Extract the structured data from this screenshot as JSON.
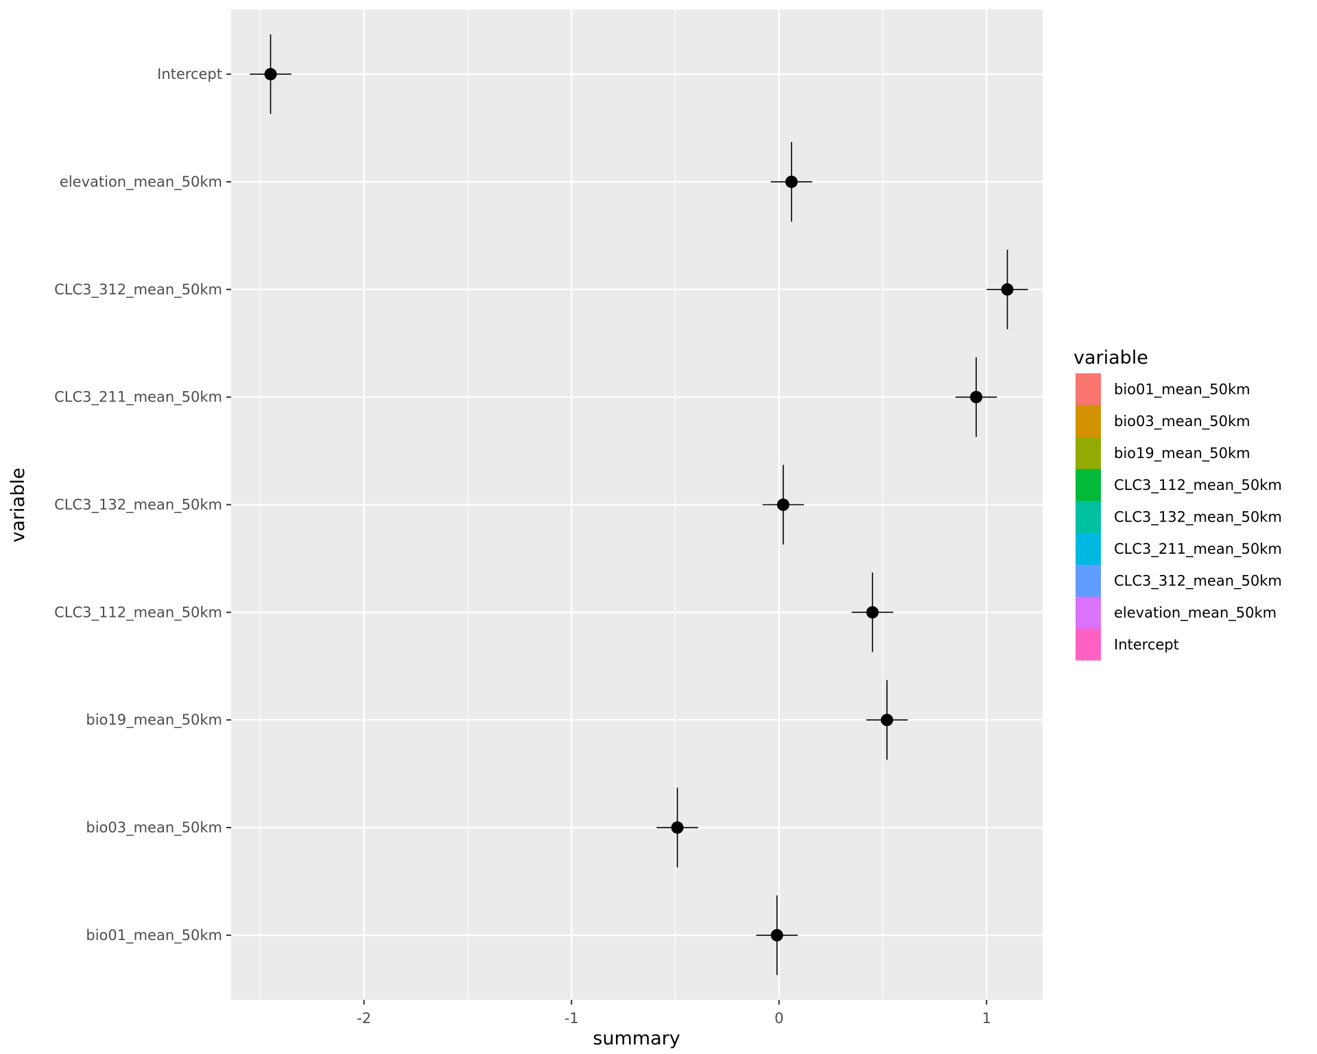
{
  "chart_data": {
    "type": "scatter",
    "xlabel": "summary",
    "ylabel": "variable",
    "xlim": [
      -2.64,
      1.27
    ],
    "x_ticks": [
      -2,
      -1,
      0,
      1
    ],
    "x_tick_labels": [
      "-2",
      "-1",
      "0",
      "1"
    ],
    "x_minor_ticks": [
      -2.5,
      -1.5,
      -0.5,
      0.5
    ],
    "categories": [
      "Intercept",
      "elevation_mean_50km",
      "CLC3_312_mean_50km",
      "CLC3_211_mean_50km",
      "CLC3_132_mean_50km",
      "CLC3_112_mean_50km",
      "bio19_mean_50km",
      "bio03_mean_50km",
      "bio01_mean_50km"
    ],
    "points": [
      {
        "variable": "Intercept",
        "x": -2.45,
        "xerr": 0.1,
        "yerr": 0.37
      },
      {
        "variable": "elevation_mean_50km",
        "x": 0.06,
        "xerr": 0.1,
        "yerr": 0.37
      },
      {
        "variable": "CLC3_312_mean_50km",
        "x": 1.1,
        "xerr": 0.1,
        "yerr": 0.37
      },
      {
        "variable": "CLC3_211_mean_50km",
        "x": 0.95,
        "xerr": 0.1,
        "yerr": 0.37
      },
      {
        "variable": "CLC3_132_mean_50km",
        "x": 0.02,
        "xerr": 0.1,
        "yerr": 0.37
      },
      {
        "variable": "CLC3_112_mean_50km",
        "x": 0.45,
        "xerr": 0.1,
        "yerr": 0.37
      },
      {
        "variable": "bio19_mean_50km",
        "x": 0.52,
        "xerr": 0.1,
        "yerr": 0.37
      },
      {
        "variable": "bio03_mean_50km",
        "x": -0.49,
        "xerr": 0.1,
        "yerr": 0.37
      },
      {
        "variable": "bio01_mean_50km",
        "x": -0.01,
        "xerr": 0.1,
        "yerr": 0.37
      }
    ],
    "grid": true,
    "legend": {
      "title": "variable",
      "placement": "right",
      "entries": [
        {
          "label": "bio01_mean_50km",
          "color": "#F8766D"
        },
        {
          "label": "bio03_mean_50km",
          "color": "#D39200"
        },
        {
          "label": "bio19_mean_50km",
          "color": "#93AA00"
        },
        {
          "label": "CLC3_112_mean_50km",
          "color": "#00BA38"
        },
        {
          "label": "CLC3_132_mean_50km",
          "color": "#00C19F"
        },
        {
          "label": "CLC3_211_mean_50km",
          "color": "#00B9E3"
        },
        {
          "label": "CLC3_312_mean_50km",
          "color": "#619CFF"
        },
        {
          "label": "elevation_mean_50km",
          "color": "#DB72FB"
        },
        {
          "label": "Intercept",
          "color": "#FF61C3"
        }
      ]
    },
    "colors": {
      "panel_background": "#EBEBEB",
      "grid_line": "#FFFFFF",
      "point": "#000000",
      "tick_text": "#4D4D4D"
    }
  }
}
